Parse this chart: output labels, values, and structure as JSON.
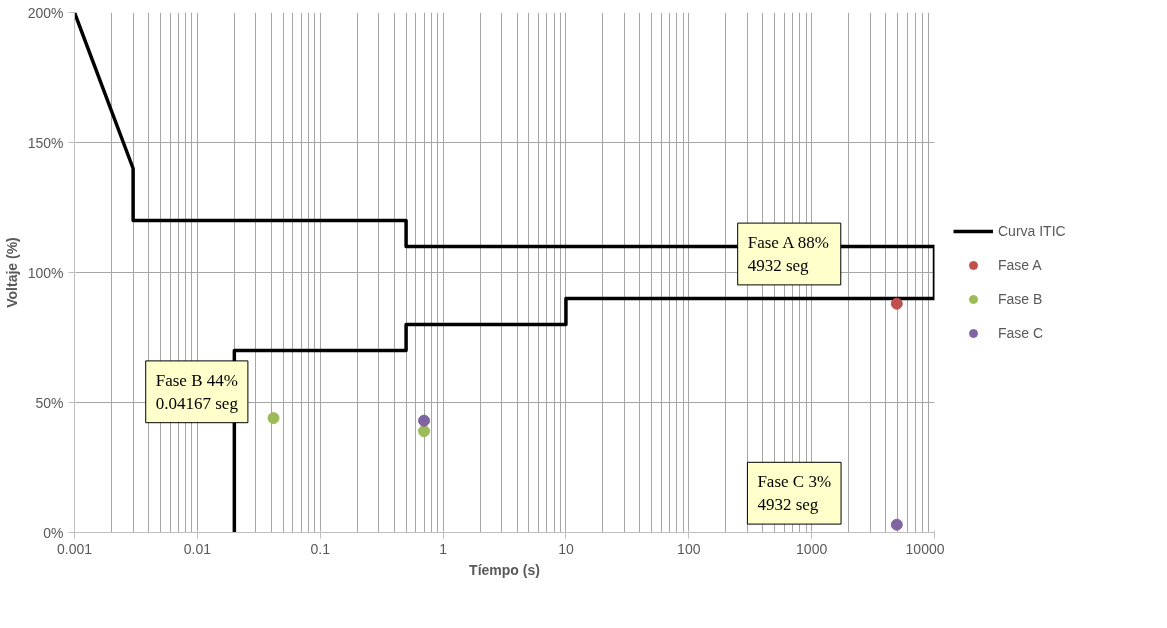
{
  "chart_data": {
    "type": "line",
    "xlabel": "Tíempo (s)",
    "ylabel": "Voltaje (%)",
    "log": "x",
    "xlim": [
      0.001,
      10000
    ],
    "xticks": [
      0.001,
      0.01,
      0.1,
      1,
      10,
      100,
      1000,
      10000
    ],
    "ylim": [
      0,
      200
    ],
    "yticks": [
      {
        "value": 0,
        "label": "0%"
      },
      {
        "value": 50,
        "label": "50%"
      },
      {
        "value": 100,
        "label": "100%"
      },
      {
        "value": 150,
        "label": "150%"
      },
      {
        "value": 200,
        "label": "200%"
      }
    ],
    "grid": true,
    "legend": "right",
    "series": [
      {
        "name": "Curva ITIC",
        "color": "#000000",
        "marker": "none",
        "x": [
          0.02,
          0.02,
          0.5,
          0.5,
          10,
          10,
          10000,
          10000,
          0.5,
          0.5,
          0.003,
          0.003,
          0.001
        ],
        "values": [
          0,
          70,
          70,
          80,
          80,
          90,
          90,
          110,
          110,
          120,
          120,
          140,
          200
        ]
      },
      {
        "name": "Fase A",
        "type": "scatter",
        "color": "#c0504d",
        "marker": "circle",
        "x": [
          4932
        ],
        "values": [
          88
        ]
      },
      {
        "name": "Fase B",
        "type": "scatter",
        "color": "#9bbb59",
        "marker": "circle",
        "x": [
          0.04167,
          0.7
        ],
        "values": [
          44,
          39
        ]
      },
      {
        "name": "Fase C",
        "type": "scatter",
        "color": "#8064a2",
        "marker": "circle",
        "x": [
          0.7,
          4932
        ],
        "values": [
          43,
          3
        ]
      }
    ],
    "annotations": [
      "Fase A 88% 4932 seg",
      "Fase B 44% 0.04167 seg",
      "Fase C 3% 4932 seg"
    ]
  }
}
